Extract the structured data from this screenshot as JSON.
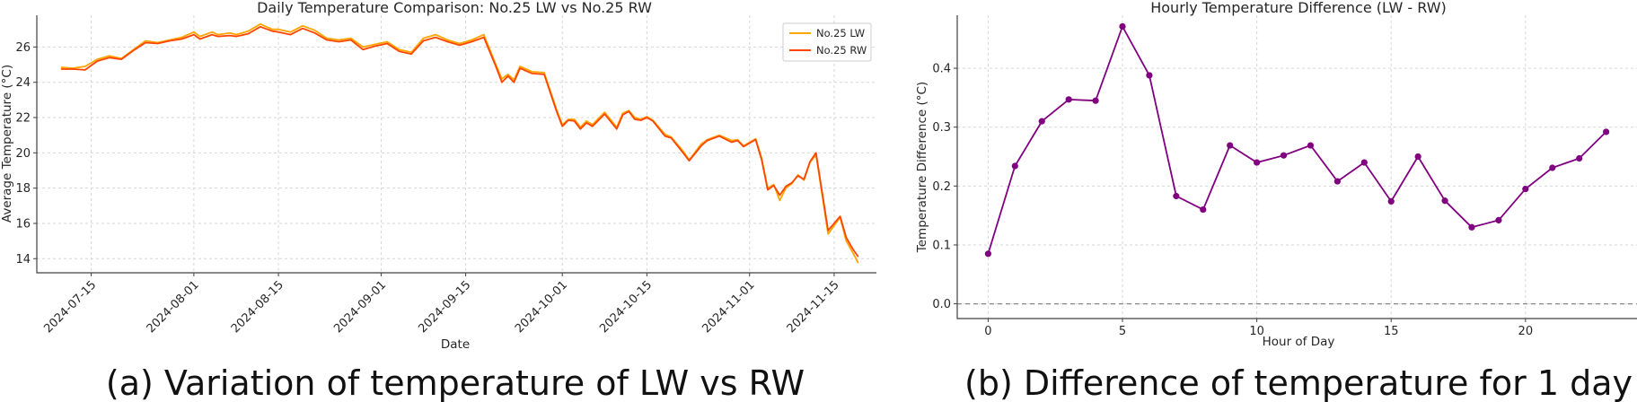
{
  "charts": {
    "left": {
      "caption": "(a) Variation of temperature of LW vs RW",
      "chart_data": {
        "type": "line",
        "title": "Daily Temperature Comparison: No.25 LW vs No.25 RW",
        "xlabel": "Date",
        "ylabel": "Average Temperature (°C)",
        "x_ticks": [
          "2024-07-15",
          "2024-08-01",
          "2024-08-15",
          "2024-09-01",
          "2024-09-15",
          "2024-10-01",
          "2024-10-15",
          "2024-11-01",
          "2024-11-15"
        ],
        "x_range": [
          "2024-07-06",
          "2024-11-22"
        ],
        "y_ticks": [
          14,
          16,
          18,
          20,
          22,
          24,
          26
        ],
        "ylim": [
          13.2,
          27.8
        ],
        "grid": true,
        "legend": "top-right",
        "x": [
          "2024-07-10",
          "2024-07-12",
          "2024-07-14",
          "2024-07-16",
          "2024-07-18",
          "2024-07-20",
          "2024-07-22",
          "2024-07-24",
          "2024-07-26",
          "2024-07-28",
          "2024-07-30",
          "2024-08-01",
          "2024-08-02",
          "2024-08-04",
          "2024-08-05",
          "2024-08-07",
          "2024-08-08",
          "2024-08-10",
          "2024-08-12",
          "2024-08-14",
          "2024-08-15",
          "2024-08-17",
          "2024-08-19",
          "2024-08-21",
          "2024-08-23",
          "2024-08-25",
          "2024-08-27",
          "2024-08-29",
          "2024-08-31",
          "2024-09-02",
          "2024-09-04",
          "2024-09-06",
          "2024-09-08",
          "2024-09-10",
          "2024-09-12",
          "2024-09-14",
          "2024-09-16",
          "2024-09-18",
          "2024-09-20",
          "2024-09-21",
          "2024-09-22",
          "2024-09-23",
          "2024-09-24",
          "2024-09-26",
          "2024-09-28",
          "2024-09-30",
          "2024-10-01",
          "2024-10-02",
          "2024-10-03",
          "2024-10-04",
          "2024-10-05",
          "2024-10-06",
          "2024-10-08",
          "2024-10-10",
          "2024-10-11",
          "2024-10-12",
          "2024-10-13",
          "2024-10-14",
          "2024-10-15",
          "2024-10-16",
          "2024-10-18",
          "2024-10-19",
          "2024-10-21",
          "2024-10-22",
          "2024-10-24",
          "2024-10-25",
          "2024-10-27",
          "2024-10-29",
          "2024-10-30",
          "2024-10-31",
          "2024-11-02",
          "2024-11-03",
          "2024-11-04",
          "2024-11-05",
          "2024-11-06",
          "2024-11-07",
          "2024-11-08",
          "2024-11-09",
          "2024-11-10",
          "2024-11-11",
          "2024-11-12",
          "2024-11-14",
          "2024-11-16",
          "2024-11-17",
          "2024-11-18",
          "2024-11-19"
        ],
        "series": [
          {
            "name": "No.25 LW",
            "color": "#FFA500",
            "values": [
              24.85,
              24.8,
              24.9,
              25.3,
              25.5,
              25.35,
              25.85,
              26.35,
              26.25,
              26.4,
              26.55,
              26.85,
              26.6,
              26.85,
              26.7,
              26.8,
              26.7,
              26.9,
              27.3,
              27.0,
              27.0,
              26.85,
              27.2,
              26.95,
              26.5,
              26.4,
              26.5,
              26.0,
              26.15,
              26.3,
              25.85,
              25.7,
              26.5,
              26.7,
              26.4,
              26.2,
              26.4,
              26.7,
              25.0,
              24.2,
              24.45,
              24.15,
              24.9,
              24.6,
              24.55,
              22.5,
              21.6,
              21.9,
              21.9,
              21.45,
              21.8,
              21.6,
              22.3,
              21.45,
              22.25,
              22.4,
              22.0,
              21.9,
              22.05,
              21.85,
              21.05,
              20.9,
              20.1,
              19.6,
              20.5,
              20.75,
              21.0,
              20.7,
              20.75,
              20.4,
              20.8,
              19.7,
              18.0,
              18.2,
              17.3,
              18.0,
              18.25,
              18.75,
              18.45,
              19.45,
              19.9,
              15.4,
              16.35,
              15.0,
              14.4,
              13.75
            ]
          },
          {
            "name": "No.25 RW",
            "color": "#FF4500",
            "values": [
              24.75,
              24.75,
              24.7,
              25.2,
              25.4,
              25.3,
              25.8,
              26.25,
              26.2,
              26.35,
              26.45,
              26.7,
              26.45,
              26.7,
              26.6,
              26.65,
              26.6,
              26.75,
              27.15,
              26.9,
              26.85,
              26.7,
              27.05,
              26.8,
              26.4,
              26.3,
              26.4,
              25.85,
              26.05,
              26.2,
              25.75,
              25.6,
              26.35,
              26.55,
              26.3,
              26.1,
              26.3,
              26.55,
              24.9,
              24.0,
              24.35,
              24.0,
              24.8,
              24.5,
              24.45,
              22.4,
              21.5,
              21.85,
              21.8,
              21.35,
              21.7,
              21.5,
              22.2,
              21.35,
              22.15,
              22.35,
              21.9,
              21.85,
              22.0,
              21.8,
              20.95,
              20.85,
              20.0,
              19.55,
              20.4,
              20.7,
              20.95,
              20.6,
              20.7,
              20.35,
              20.75,
              19.6,
              17.9,
              18.15,
              17.6,
              18.1,
              18.3,
              18.7,
              18.5,
              19.5,
              20.0,
              15.6,
              16.4,
              15.2,
              14.6,
              14.1
            ]
          }
        ]
      }
    },
    "right": {
      "caption": "(b) Difference of temperature for 1 day",
      "chart_data": {
        "type": "line",
        "title": "Hourly Temperature Difference (LW - RW)",
        "xlabel": "Hour of Day",
        "ylabel": "Temperature Difference (°C)",
        "x_ticks": [
          0,
          5,
          10,
          15,
          20
        ],
        "y_ticks": [
          "0.0",
          "0.1",
          "0.2",
          "0.3",
          "0.4"
        ],
        "xlim": [
          -1.15,
          24.15
        ],
        "ylim": [
          -0.025,
          0.49
        ],
        "grid": true,
        "zero_line": true,
        "series": [
          {
            "color": "#800080",
            "x": [
              0,
              1,
              2,
              3,
              4,
              5,
              6,
              7,
              8,
              9,
              10,
              11,
              12,
              13,
              14,
              15,
              16,
              17,
              18,
              19,
              20,
              21,
              22,
              23
            ],
            "values": [
              0.085,
              0.234,
              0.31,
              0.347,
              0.345,
              0.471,
              0.388,
              0.183,
              0.16,
              0.269,
              0.24,
              0.252,
              0.269,
              0.208,
              0.24,
              0.174,
              0.25,
              0.175,
              0.13,
              0.142,
              0.195,
              0.231,
              0.247,
              0.292
            ]
          }
        ]
      }
    }
  }
}
